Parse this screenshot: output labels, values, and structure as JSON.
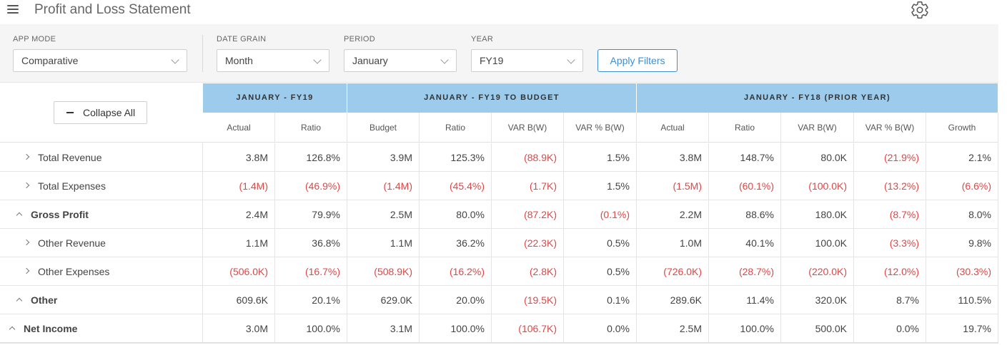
{
  "header": {
    "title": "Profit and Loss Statement",
    "menu_icon": "hamburger-icon",
    "settings_icon": "gear-icon"
  },
  "filters": {
    "app_mode": {
      "label": "APP MODE",
      "value": "Comparative"
    },
    "date_grain": {
      "label": "DATE GRAIN",
      "value": "Month"
    },
    "period": {
      "label": "PERIOD",
      "value": "January"
    },
    "year": {
      "label": "YEAR",
      "value": "FY19"
    },
    "apply_label": "Apply Filters"
  },
  "table": {
    "collapse_label": "Collapse All",
    "groups": [
      {
        "label": "JANUARY - FY19"
      },
      {
        "label": "JANUARY - FY19 TO BUDGET"
      },
      {
        "label": "JANUARY - FY18 (PRIOR YEAR)"
      }
    ],
    "columns": [
      "Actual",
      "Ratio",
      "Budget",
      "Ratio",
      "VAR B(W)",
      "VAR % B(W)",
      "Actual",
      "Ratio",
      "VAR B(W)",
      "VAR % B(W)",
      "Growth"
    ],
    "rows": [
      {
        "label": "Total Revenue",
        "bold": false,
        "state": "collapsed",
        "values": [
          "3.8M",
          "126.8%",
          "3.9M",
          "125.3%",
          "(88.9K)",
          "1.5%",
          "3.8M",
          "148.7%",
          "80.0K",
          "(21.9%)",
          "2.1%"
        ]
      },
      {
        "label": "Total Expenses",
        "bold": false,
        "state": "collapsed",
        "values": [
          "(1.4M)",
          "(46.9%)",
          "(1.4M)",
          "(45.4%)",
          "(1.7K)",
          "1.5%",
          "(1.5M)",
          "(60.1%)",
          "(100.0K)",
          "(13.2%)",
          "(6.6%)"
        ]
      },
      {
        "label": "Gross Profit",
        "bold": true,
        "state": "expanded",
        "values": [
          "2.4M",
          "79.9%",
          "2.5M",
          "80.0%",
          "(87.2K)",
          "(0.1%)",
          "2.2M",
          "88.6%",
          "180.0K",
          "(8.7%)",
          "8.0%"
        ]
      },
      {
        "label": "Other Revenue",
        "bold": false,
        "state": "collapsed",
        "values": [
          "1.1M",
          "36.8%",
          "1.1M",
          "36.2%",
          "(22.3K)",
          "0.5%",
          "1.0M",
          "40.1%",
          "100.0K",
          "(3.3%)",
          "9.8%"
        ]
      },
      {
        "label": "Other Expenses",
        "bold": false,
        "state": "collapsed",
        "values": [
          "(506.0K)",
          "(16.7%)",
          "(508.9K)",
          "(16.2%)",
          "(2.8K)",
          "0.5%",
          "(726.0K)",
          "(28.7%)",
          "(220.0K)",
          "(12.0%)",
          "(30.3%)"
        ]
      },
      {
        "label": "Other",
        "bold": true,
        "state": "expanded",
        "values": [
          "609.6K",
          "20.1%",
          "629.0K",
          "20.0%",
          "(19.5K)",
          "0.1%",
          "289.6K",
          "11.4%",
          "320.0K",
          "8.7%",
          "110.5%"
        ]
      },
      {
        "label": "Net Income",
        "bold": true,
        "state": "expanded",
        "values": [
          "3.0M",
          "100.0%",
          "3.1M",
          "100.0%",
          "(106.7K)",
          "0.0%",
          "2.5M",
          "100.0%",
          "500.0K",
          "0.0%",
          "19.7%"
        ]
      }
    ]
  },
  "colors": {
    "header_band": "#9ccbec",
    "negative": "#e04646",
    "accent": "#3b8fd8"
  }
}
